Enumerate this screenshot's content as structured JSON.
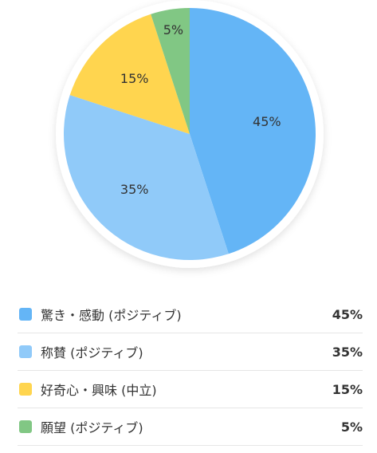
{
  "chart_data": {
    "type": "pie",
    "categories": [
      "驚き・感動 (ポジティブ)",
      "称賛 (ポジティブ)",
      "好奇心・興味 (中立)",
      "願望 (ポジティブ)"
    ],
    "values": [
      45,
      35,
      15,
      5
    ],
    "data_labels": [
      "45%",
      "35%",
      "15%",
      "5%"
    ],
    "colors": [
      "#64b5f6",
      "#90caf9",
      "#ffd54f",
      "#81c784"
    ],
    "start_angle_deg": 0,
    "direction": "clockwise",
    "legend_position": "bottom"
  },
  "legend": {
    "items": [
      {
        "label": "驚き・感動 (ポジティブ)",
        "value": "45%",
        "color": "#64b5f6"
      },
      {
        "label": "称賛 (ポジティブ)",
        "value": "35%",
        "color": "#90caf9"
      },
      {
        "label": "好奇心・興味 (中立)",
        "value": "15%",
        "color": "#ffd54f"
      },
      {
        "label": "願望 (ポジティブ)",
        "value": "5%",
        "color": "#81c784"
      }
    ]
  }
}
